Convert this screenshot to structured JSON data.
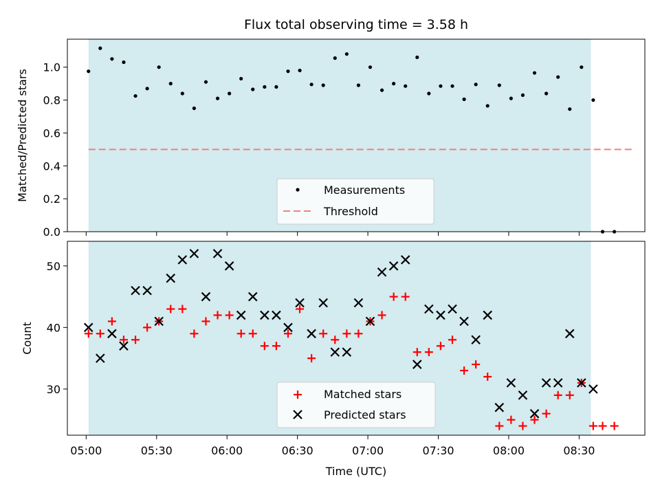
{
  "chart_data": [
    {
      "type": "scatter",
      "title": "Flux total observing time = 3.58 h",
      "xlabel": "",
      "ylabel": "Matched/Predicted stars",
      "xlim": [
        "04:52",
        "08:58"
      ],
      "ylim": [
        0,
        1.17
      ],
      "y_ticks": [
        "0.0",
        "0.2",
        "0.4",
        "0.6",
        "0.8",
        "1.0"
      ],
      "shaded_span": [
        "05:01",
        "08:35"
      ],
      "threshold": {
        "value": 0.5,
        "from": "05:01",
        "to": "08:53"
      },
      "legend": {
        "placement": "lower-center",
        "entries": [
          "Measurements",
          "Threshold"
        ]
      },
      "series": [
        {
          "name": "Measurements",
          "x": [
            "05:01",
            "05:06",
            "05:11",
            "05:16",
            "05:21",
            "05:26",
            "05:31",
            "05:36",
            "05:41",
            "05:46",
            "05:51",
            "05:56",
            "06:01",
            "06:06",
            "06:11",
            "06:16",
            "06:21",
            "06:26",
            "06:31",
            "06:36",
            "06:41",
            "06:46",
            "06:51",
            "06:56",
            "07:01",
            "07:06",
            "07:11",
            "07:16",
            "07:21",
            "07:26",
            "07:31",
            "07:36",
            "07:41",
            "07:46",
            "07:51",
            "07:56",
            "08:01",
            "08:06",
            "08:11",
            "08:16",
            "08:21",
            "08:26",
            "08:31",
            "08:36",
            "08:40",
            "08:45"
          ],
          "y": [
            0.975,
            1.115,
            1.05,
            1.03,
            0.825,
            0.87,
            1.0,
            0.9,
            0.84,
            0.75,
            0.91,
            0.81,
            0.84,
            0.93,
            0.865,
            0.88,
            0.88,
            0.975,
            0.98,
            0.895,
            0.89,
            1.055,
            1.08,
            0.89,
            1.0,
            0.86,
            0.9,
            0.885,
            1.06,
            0.84,
            0.885,
            0.885,
            0.805,
            0.895,
            0.765,
            0.89,
            0.81,
            0.83,
            0.965,
            0.84,
            0.94,
            0.745,
            1.0,
            0.8,
            0.0,
            0.0
          ]
        }
      ]
    },
    {
      "type": "scatter",
      "title": "",
      "xlabel": "Time (UTC)",
      "ylabel": "Count",
      "xlim": [
        "04:52",
        "08:58"
      ],
      "ylim": [
        22.5,
        54
      ],
      "x_ticks": [
        "05:00",
        "05:30",
        "06:00",
        "06:30",
        "07:00",
        "07:30",
        "08:00",
        "08:30"
      ],
      "y_ticks": [
        "30",
        "40",
        "50"
      ],
      "shaded_span": [
        "05:01",
        "08:35"
      ],
      "legend": {
        "placement": "lower-center",
        "entries": [
          "Matched stars",
          "Predicted stars"
        ]
      },
      "series": [
        {
          "name": "Matched stars",
          "x": [
            "05:01",
            "05:06",
            "05:11",
            "05:16",
            "05:21",
            "05:26",
            "05:31",
            "05:36",
            "05:41",
            "05:46",
            "05:51",
            "05:56",
            "06:01",
            "06:06",
            "06:11",
            "06:16",
            "06:21",
            "06:26",
            "06:31",
            "06:36",
            "06:41",
            "06:46",
            "06:51",
            "06:56",
            "07:01",
            "07:06",
            "07:11",
            "07:16",
            "07:21",
            "07:26",
            "07:31",
            "07:36",
            "07:41",
            "07:46",
            "07:51",
            "07:56",
            "08:01",
            "08:06",
            "08:11",
            "08:16",
            "08:21",
            "08:26",
            "08:31",
            "08:36",
            "08:40",
            "08:45"
          ],
          "y": [
            39,
            39,
            41,
            38,
            38,
            40,
            41,
            43,
            43,
            39,
            41,
            42,
            42,
            39,
            39,
            37,
            37,
            39,
            43,
            35,
            39,
            38,
            39,
            39,
            41,
            42,
            45,
            45,
            36,
            36,
            37,
            38,
            33,
            34,
            32,
            24,
            25,
            24,
            25,
            26,
            29,
            29,
            31,
            24,
            24,
            24
          ]
        },
        {
          "name": "Predicted stars",
          "x": [
            "05:01",
            "05:06",
            "05:11",
            "05:16",
            "05:21",
            "05:26",
            "05:31",
            "05:36",
            "05:41",
            "05:46",
            "05:51",
            "05:56",
            "06:01",
            "06:06",
            "06:11",
            "06:16",
            "06:21",
            "06:26",
            "06:31",
            "06:36",
            "06:41",
            "06:46",
            "06:51",
            "06:56",
            "07:01",
            "07:06",
            "07:11",
            "07:16",
            "07:21",
            "07:26",
            "07:31",
            "07:36",
            "07:41",
            "07:46",
            "07:51",
            "07:56",
            "08:01",
            "08:06",
            "08:11",
            "08:16",
            "08:21",
            "08:26",
            "08:31",
            "08:36"
          ],
          "y": [
            40,
            35,
            39,
            37,
            46,
            46,
            41,
            48,
            51,
            52,
            45,
            52,
            50,
            42,
            45,
            42,
            42,
            40,
            44,
            39,
            44,
            36,
            36,
            44,
            41,
            49,
            50,
            51,
            34,
            43,
            42,
            43,
            41,
            38,
            42,
            27,
            31,
            29,
            26,
            31,
            31,
            39,
            31,
            30
          ]
        }
      ]
    }
  ],
  "colors": {
    "shade": "#d4ebf0",
    "measurement": "#000000",
    "threshold": "#f08080",
    "matched": "#ff0000",
    "predicted": "#000000"
  }
}
